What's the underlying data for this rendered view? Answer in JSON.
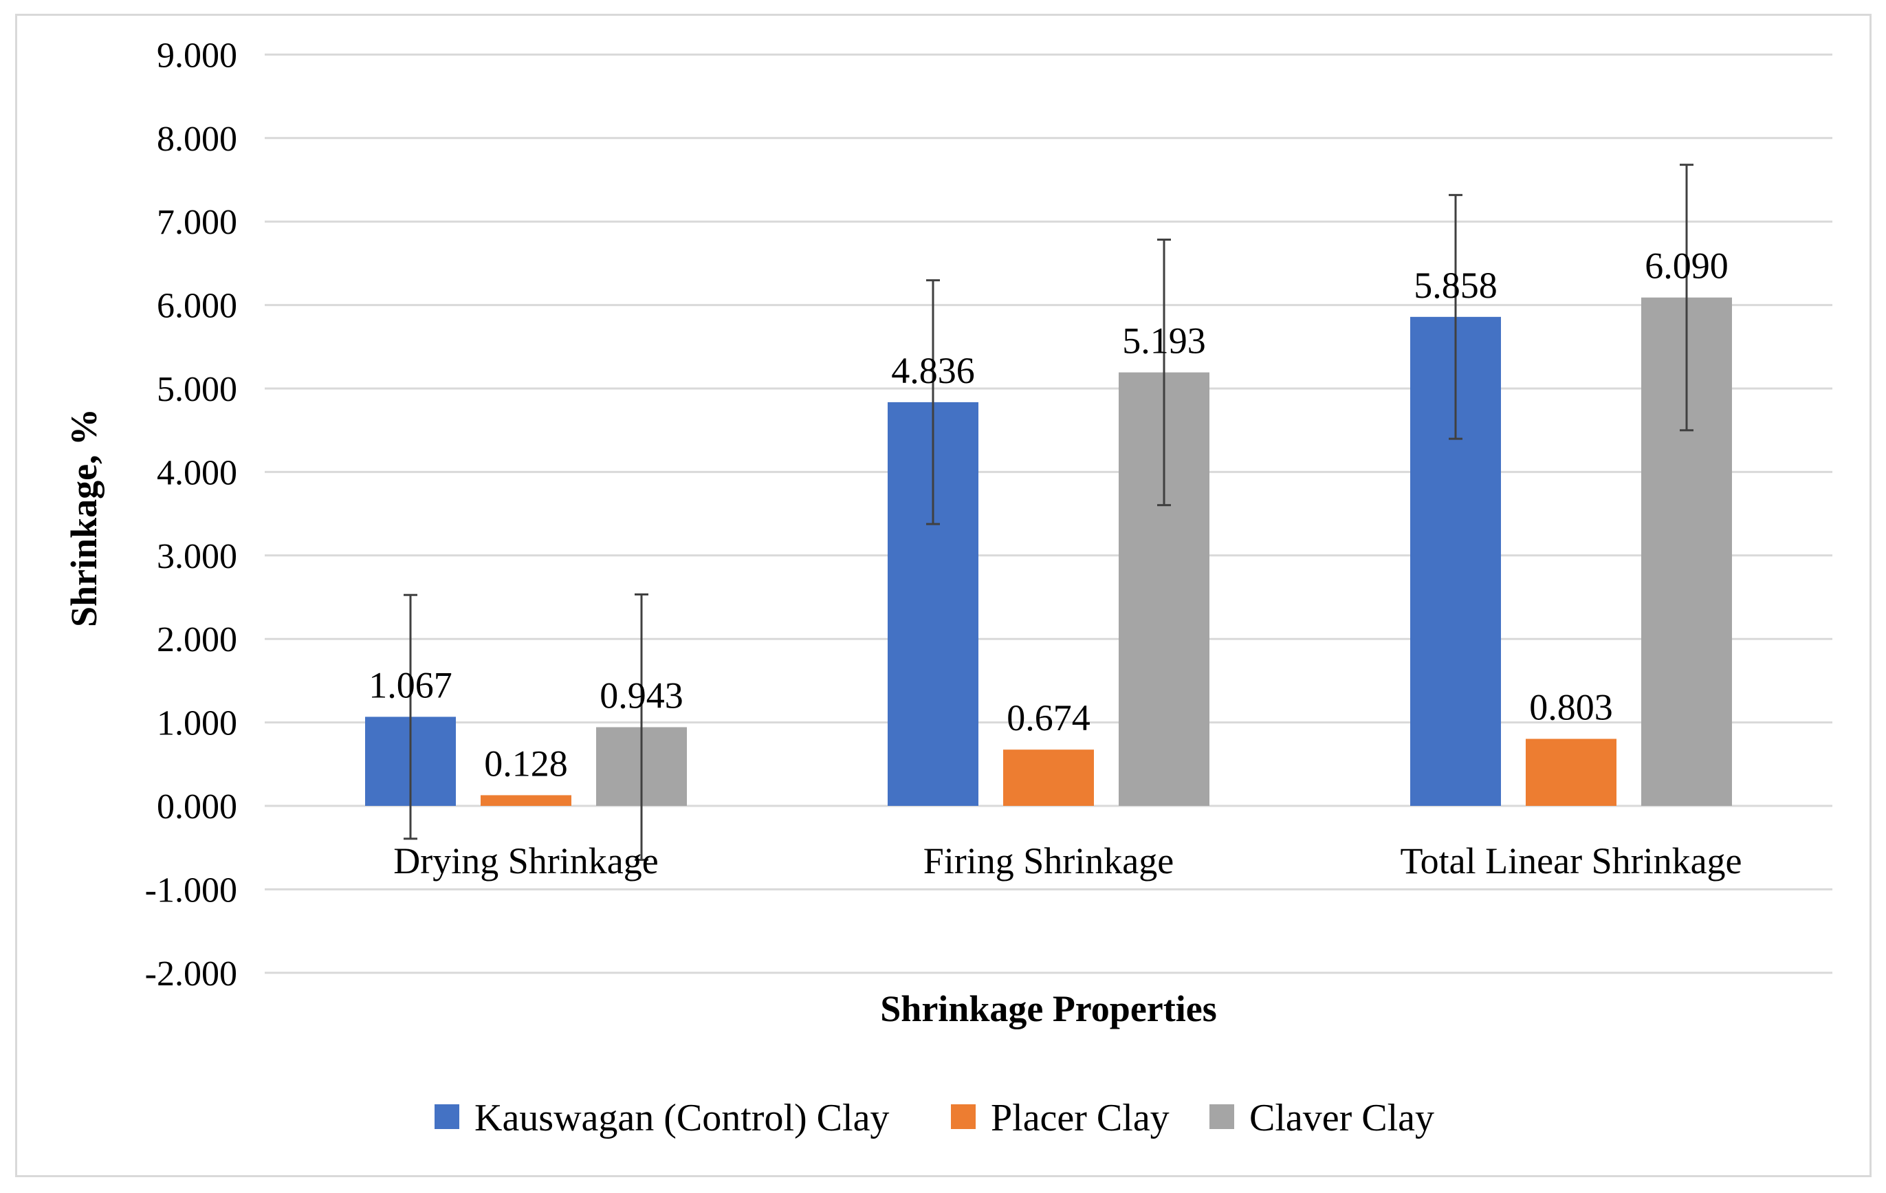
{
  "chart_data": {
    "type": "bar",
    "title": "",
    "xlabel": "Shrinkage Properties",
    "ylabel": "Shrinkage, %",
    "ylim": [
      -2,
      9
    ],
    "ytick_step": 1,
    "ytick_labels": [
      "-2.000",
      "-1.000",
      "0.000",
      "1.000",
      "2.000",
      "3.000",
      "4.000",
      "5.000",
      "6.000",
      "7.000",
      "8.000",
      "9.000"
    ],
    "grid": true,
    "legend_position": "bottom",
    "categories": [
      "Drying Shrinkage",
      "Firing Shrinkage",
      "Total Linear Shrinkage"
    ],
    "series": [
      {
        "name": "Kauswagan (Control) Clay",
        "color": "#4472C4",
        "values": [
          1.067,
          4.836,
          5.858
        ],
        "value_labels": [
          "1.067",
          "4.836",
          "5.858"
        ],
        "error": [
          1.46,
          1.46,
          1.46
        ]
      },
      {
        "name": "Placer Clay",
        "color": "#ED7D31",
        "values": [
          0.128,
          0.674,
          0.803
        ],
        "value_labels": [
          "0.128",
          "0.674",
          "0.803"
        ],
        "error": null
      },
      {
        "name": "Claver Clay",
        "color": "#A5A5A5",
        "values": [
          0.943,
          5.193,
          6.09
        ],
        "value_labels": [
          "0.943",
          "5.193",
          "6.090"
        ],
        "error": [
          1.59,
          1.59,
          1.59
        ]
      }
    ]
  }
}
